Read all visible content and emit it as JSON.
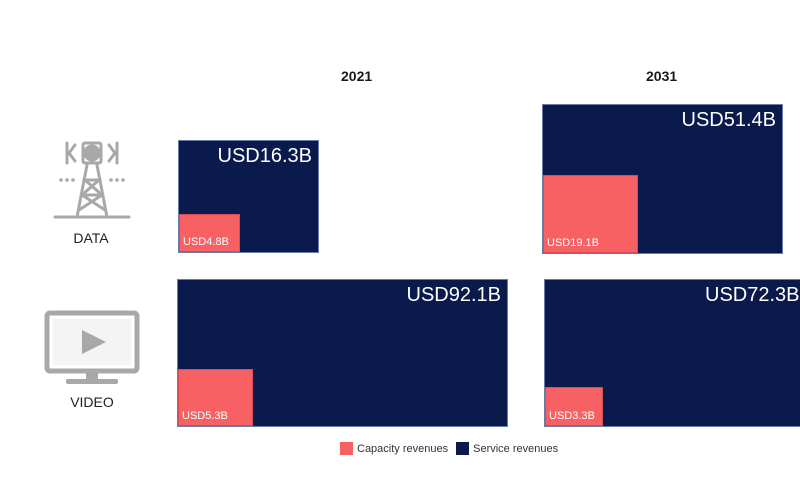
{
  "chart_data": {
    "type": "treemap",
    "years": [
      "2021",
      "2031"
    ],
    "rows": [
      "DATA",
      "VIDEO"
    ],
    "cells": [
      {
        "row": "DATA",
        "year": "2021",
        "service": "USD16.3B",
        "capacity": "USD4.8B",
        "service_value": 16.3,
        "capacity_value": 4.8
      },
      {
        "row": "DATA",
        "year": "2031",
        "service": "USD51.4B",
        "capacity": "USD19.1B",
        "service_value": 51.4,
        "capacity_value": 19.1
      },
      {
        "row": "VIDEO",
        "year": "2021",
        "service": "USD92.1B",
        "capacity": "USD5.3B",
        "service_value": 92.1,
        "capacity_value": 5.3
      },
      {
        "row": "VIDEO",
        "year": "2031",
        "service": "USD72.3B",
        "capacity": "USD3.3B",
        "service_value": 72.3,
        "capacity_value": 3.3
      }
    ],
    "legend": [
      {
        "label": "Capacity revenues",
        "color": "#f86164"
      },
      {
        "label": "Service revenues",
        "color": "#0b1a4d"
      }
    ],
    "legend_position": "bottom-center"
  },
  "icons": {
    "data": "cell-tower-icon",
    "video": "monitor-play-icon"
  }
}
